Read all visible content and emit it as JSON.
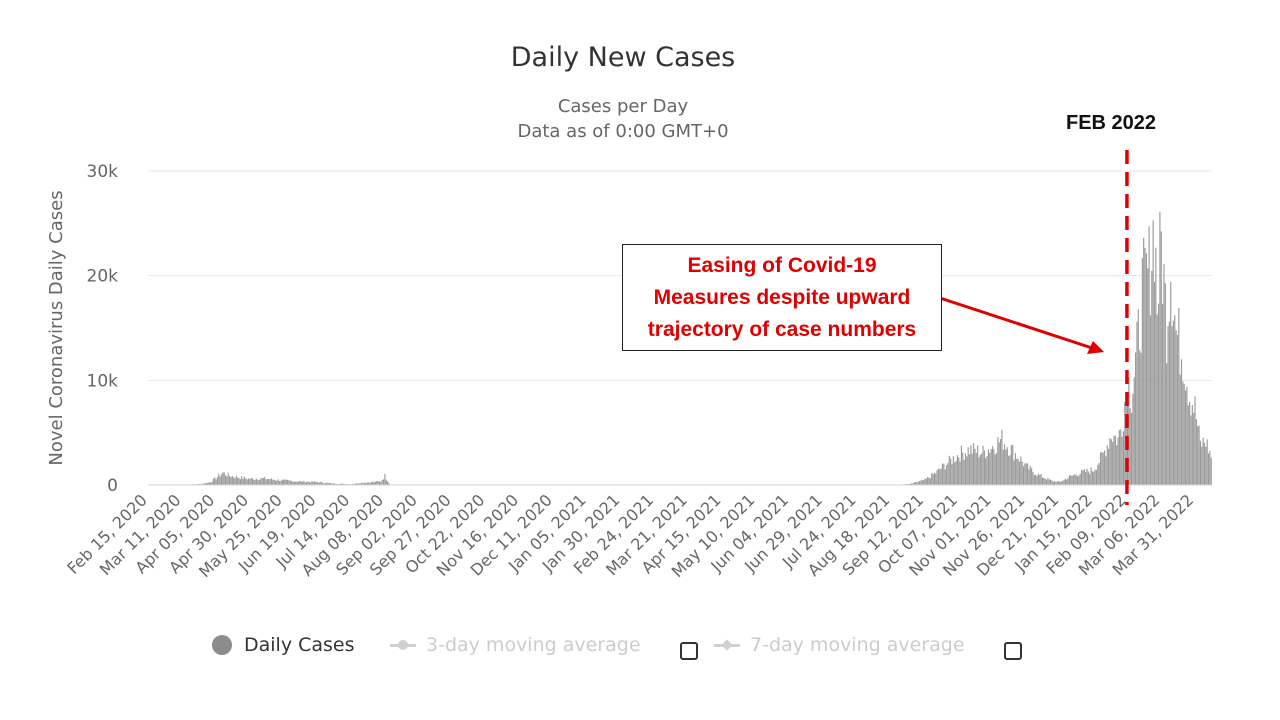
{
  "chart_data": {
    "type": "bar",
    "title": "Daily New Cases",
    "subtitle_line1": "Cases per Day",
    "subtitle_line2": "Data as of 0:00 GMT+0",
    "ylabel": "Novel Coronavirus Daily Cases",
    "ylim": [
      0,
      30000
    ],
    "yticks": [
      {
        "value": 0,
        "label": "0"
      },
      {
        "value": 10000,
        "label": "10k"
      },
      {
        "value": 20000,
        "label": "20k"
      },
      {
        "value": 30000,
        "label": "30k"
      }
    ],
    "xticks": [
      "Feb 15, 2020",
      "Mar 11, 2020",
      "Apr 05, 2020",
      "Apr 30, 2020",
      "May 25, 2020",
      "Jun 19, 2020",
      "Jul 14, 2020",
      "Aug 08, 2020",
      "Sep 02, 2020",
      "Sep 27, 2020",
      "Oct 22, 2020",
      "Nov 16, 2020",
      "Dec 11, 2020",
      "Jan 05, 2021",
      "Jan 30, 2021",
      "Feb 24, 2021",
      "Mar 21, 2021",
      "Apr 15, 2021",
      "May 10, 2021",
      "Jun 04, 2021",
      "Jun 29, 2021",
      "Jul 24, 2021",
      "Aug 18, 2021",
      "Sep 12, 2021",
      "Oct 07, 2021",
      "Nov 01, 2021",
      "Nov 26, 2021",
      "Dec 21, 2021",
      "Jan 15, 2022",
      "Feb 09, 2022",
      "Mar 06, 2022",
      "Mar 31, 2022"
    ],
    "series": [
      {
        "name": "Daily Cases",
        "color": "#999999",
        "points": [
          [
            "Feb 15, 2020",
            0
          ],
          [
            "Mar 11, 2020",
            0
          ],
          [
            "Mar 25, 2020",
            100
          ],
          [
            "Apr 01, 2020",
            300
          ],
          [
            "Apr 05, 2020",
            700
          ],
          [
            "Apr 10, 2020",
            1200
          ],
          [
            "Apr 15, 2020",
            900
          ],
          [
            "Apr 20, 2020",
            800
          ],
          [
            "Apr 30, 2020",
            600
          ],
          [
            "May 10, 2020",
            650
          ],
          [
            "May 20, 2020",
            500
          ],
          [
            "May 25, 2020",
            450
          ],
          [
            "Jun 05, 2020",
            350
          ],
          [
            "Jun 19, 2020",
            300
          ],
          [
            "Jun 30, 2020",
            150
          ],
          [
            "Jul 14, 2020",
            80
          ],
          [
            "Jul 20, 2020",
            200
          ],
          [
            "Jul 30, 2020",
            300
          ],
          [
            "Aug 05, 2020",
            350
          ],
          [
            "Aug 08, 2020",
            900
          ],
          [
            "Aug 12, 2020",
            0
          ],
          [
            "Aug 18, 2021",
            0
          ],
          [
            "Sep 01, 2021",
            100
          ],
          [
            "Sep 12, 2021",
            500
          ],
          [
            "Sep 20, 2021",
            1200
          ],
          [
            "Sep 27, 2021",
            2000
          ],
          [
            "Oct 07, 2021",
            3000
          ],
          [
            "Oct 15, 2021",
            3500
          ],
          [
            "Oct 25, 2021",
            3200
          ],
          [
            "Nov 01, 2021",
            3800
          ],
          [
            "Nov 08, 2021",
            4500
          ],
          [
            "Nov 15, 2021",
            3500
          ],
          [
            "Nov 22, 2021",
            2500
          ],
          [
            "Nov 26, 2021",
            1800
          ],
          [
            "Dec 05, 2021",
            1000
          ],
          [
            "Dec 15, 2021",
            400
          ],
          [
            "Dec 21, 2021",
            300
          ],
          [
            "Dec 28, 2021",
            800
          ],
          [
            "Jan 05, 2022",
            1200
          ],
          [
            "Jan 15, 2022",
            1500
          ],
          [
            "Jan 22, 2022",
            3000
          ],
          [
            "Jan 28, 2022",
            5000
          ],
          [
            "Feb 02, 2022",
            4500
          ],
          [
            "Feb 05, 2022",
            6000
          ],
          [
            "Feb 09, 2022",
            10500
          ],
          [
            "Feb 12, 2022",
            9000
          ],
          [
            "Feb 16, 2022",
            13000
          ],
          [
            "Feb 20, 2022",
            19000
          ],
          [
            "Feb 25, 2022",
            21000
          ],
          [
            "Mar 01, 2022",
            25800
          ],
          [
            "Mar 03, 2022",
            18000
          ],
          [
            "Mar 06, 2022",
            23800
          ],
          [
            "Mar 10, 2022",
            16000
          ],
          [
            "Mar 13, 2022",
            22000
          ],
          [
            "Mar 17, 2022",
            15000
          ],
          [
            "Mar 22, 2022",
            13000
          ],
          [
            "Mar 27, 2022",
            9000
          ],
          [
            "Mar 31, 2022",
            7500
          ],
          [
            "Apr 04, 2022",
            4000
          ],
          [
            "Apr 08, 2022",
            4300
          ],
          [
            "Apr 12, 2022",
            2800
          ]
        ]
      }
    ],
    "legend": [
      {
        "label": "Daily Cases",
        "active": true
      },
      {
        "label": "3-day moving average",
        "active": false
      },
      {
        "label": "7-day moving average",
        "active": false
      }
    ],
    "grid": true,
    "legend_position": "bottom"
  },
  "annotation": {
    "marker_label": "FEB 2022",
    "marker_date": "Feb 09, 2022",
    "marker_color": "#e00000",
    "box_line1": "Easing of Covid-19",
    "box_line2": "Measures despite upward",
    "box_line3": "trajectory of case numbers",
    "text_color": "#e00000"
  }
}
